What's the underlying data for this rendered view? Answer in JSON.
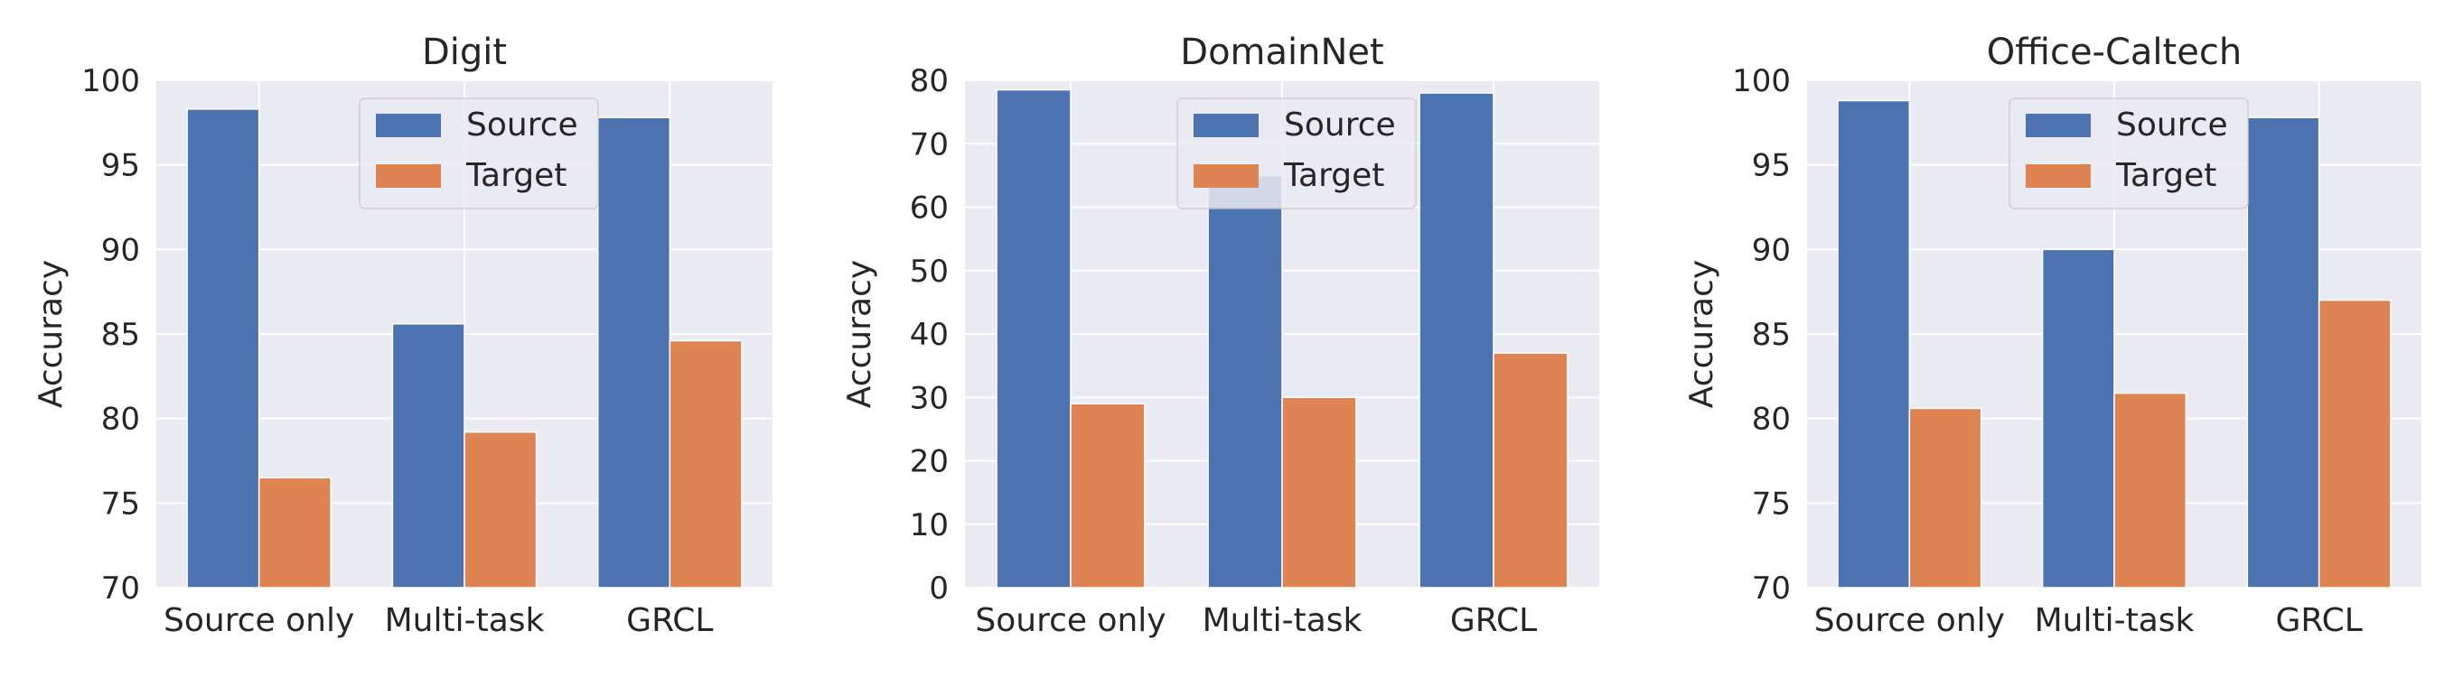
{
  "figure": {
    "series_colors": {
      "Source": "#4c72b0",
      "Target": "#dd8452"
    },
    "plot_background": "#eaeaf2",
    "grid_color": "#ffffff"
  },
  "chart_data": [
    {
      "type": "bar",
      "title": "Digit",
      "xlabel": "",
      "ylabel": "Accuracy",
      "categories": [
        "Source only",
        "Multi-task",
        "GRCL"
      ],
      "ylim": [
        70,
        100
      ],
      "yticks": [
        70,
        75,
        80,
        85,
        90,
        95,
        100
      ],
      "grid": true,
      "legend": "top-center",
      "series": [
        {
          "name": "Source",
          "values": [
            98.3,
            85.6,
            97.8
          ]
        },
        {
          "name": "Target",
          "values": [
            76.5,
            79.2,
            84.6
          ]
        }
      ]
    },
    {
      "type": "bar",
      "title": "DomainNet",
      "xlabel": "",
      "ylabel": "Accuracy",
      "categories": [
        "Source only",
        "Multi-task",
        "GRCL"
      ],
      "ylim": [
        0,
        80
      ],
      "yticks": [
        0,
        10,
        20,
        30,
        40,
        50,
        60,
        70,
        80
      ],
      "grid": true,
      "legend": "top-center",
      "series": [
        {
          "name": "Source",
          "values": [
            78.5,
            65.0,
            78.0
          ]
        },
        {
          "name": "Target",
          "values": [
            29.0,
            30.0,
            37.0
          ]
        }
      ]
    },
    {
      "type": "bar",
      "title": "Office-Caltech",
      "xlabel": "",
      "ylabel": "Accuracy",
      "categories": [
        "Source only",
        "Multi-task",
        "GRCL"
      ],
      "ylim": [
        70,
        100
      ],
      "yticks": [
        70,
        75,
        80,
        85,
        90,
        95,
        100
      ],
      "grid": true,
      "legend": "top-center",
      "series": [
        {
          "name": "Source",
          "values": [
            98.8,
            90.0,
            97.8
          ]
        },
        {
          "name": "Target",
          "values": [
            80.6,
            81.5,
            87.0
          ]
        }
      ]
    }
  ]
}
